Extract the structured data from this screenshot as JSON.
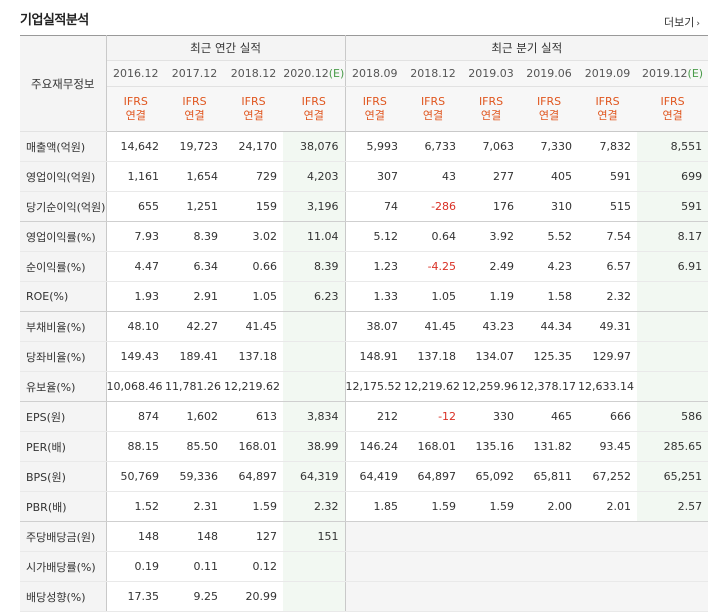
{
  "header": {
    "title": "기업실적분석",
    "more_label": "더보기",
    "more_arrow": "›"
  },
  "table": {
    "corner_label": "주요재무정보",
    "annual_group": "최근 연간 실적",
    "quarter_group": "최근 분기 실적",
    "periods_annual": [
      "2016.12",
      "2017.12",
      "2018.12",
      "2020.12(E)"
    ],
    "periods_quarter": [
      "2018.09",
      "2018.12",
      "2019.03",
      "2019.06",
      "2019.09",
      "2019.12(E)"
    ],
    "ifrs_label": "IFRS",
    "ifrs_sub": "연결",
    "rows": [
      {
        "label": "매출액(억원)",
        "annual": [
          "14,642",
          "19,723",
          "24,170",
          "38,076"
        ],
        "quarter": [
          "5,993",
          "6,733",
          "7,063",
          "7,330",
          "7,832",
          "8,551"
        ]
      },
      {
        "label": "영업이익(억원)",
        "annual": [
          "1,161",
          "1,654",
          "729",
          "4,203"
        ],
        "quarter": [
          "307",
          "43",
          "277",
          "405",
          "591",
          "699"
        ]
      },
      {
        "label": "당기순이익(억원)",
        "annual": [
          "655",
          "1,251",
          "159",
          "3,196"
        ],
        "quarter": [
          "74",
          "-286",
          "176",
          "310",
          "515",
          "591"
        ]
      },
      {
        "label": "영업이익률(%)",
        "annual": [
          "7.93",
          "8.39",
          "3.02",
          "11.04"
        ],
        "quarter": [
          "5.12",
          "0.64",
          "3.92",
          "5.52",
          "7.54",
          "8.17"
        ]
      },
      {
        "label": "순이익률(%)",
        "annual": [
          "4.47",
          "6.34",
          "0.66",
          "8.39"
        ],
        "quarter": [
          "1.23",
          "-4.25",
          "2.49",
          "4.23",
          "6.57",
          "6.91"
        ]
      },
      {
        "label": "ROE(%)",
        "annual": [
          "1.93",
          "2.91",
          "1.05",
          "6.23"
        ],
        "quarter": [
          "1.33",
          "1.05",
          "1.19",
          "1.58",
          "2.32",
          ""
        ]
      },
      {
        "label": "부채비율(%)",
        "annual": [
          "48.10",
          "42.27",
          "41.45",
          ""
        ],
        "quarter": [
          "38.07",
          "41.45",
          "43.23",
          "44.34",
          "49.31",
          ""
        ]
      },
      {
        "label": "당좌비율(%)",
        "annual": [
          "149.43",
          "189.41",
          "137.18",
          ""
        ],
        "quarter": [
          "148.91",
          "137.18",
          "134.07",
          "125.35",
          "129.97",
          ""
        ]
      },
      {
        "label": "유보율(%)",
        "annual": [
          "10,068.46",
          "11,781.26",
          "12,219.62",
          ""
        ],
        "quarter": [
          "12,175.52",
          "12,219.62",
          "12,259.96",
          "12,378.17",
          "12,633.14",
          ""
        ]
      },
      {
        "label": "EPS(원)",
        "annual": [
          "874",
          "1,602",
          "613",
          "3,834"
        ],
        "quarter": [
          "212",
          "-12",
          "330",
          "465",
          "666",
          "586"
        ]
      },
      {
        "label": "PER(배)",
        "annual": [
          "88.15",
          "85.50",
          "168.01",
          "38.99"
        ],
        "quarter": [
          "146.24",
          "168.01",
          "135.16",
          "131.82",
          "93.45",
          "285.65"
        ]
      },
      {
        "label": "BPS(원)",
        "annual": [
          "50,769",
          "59,336",
          "64,897",
          "64,319"
        ],
        "quarter": [
          "64,419",
          "64,897",
          "65,092",
          "65,811",
          "67,252",
          "65,251"
        ]
      },
      {
        "label": "PBR(배)",
        "annual": [
          "1.52",
          "2.31",
          "1.59",
          "2.32"
        ],
        "quarter": [
          "1.85",
          "1.59",
          "1.59",
          "2.00",
          "2.01",
          "2.57"
        ]
      },
      {
        "label": "주당배당금(원)",
        "annual": [
          "148",
          "148",
          "127",
          "151"
        ],
        "quarter": [
          "",
          "",
          "",
          "",
          "",
          ""
        ]
      },
      {
        "label": "시가배당률(%)",
        "annual": [
          "0.19",
          "0.11",
          "0.12",
          ""
        ],
        "quarter": [
          "",
          "",
          "",
          "",
          "",
          ""
        ]
      },
      {
        "label": "배당성향(%)",
        "annual": [
          "17.35",
          "9.25",
          "20.99",
          ""
        ],
        "quarter": [
          "",
          "",
          "",
          "",
          "",
          ""
        ]
      }
    ]
  }
}
